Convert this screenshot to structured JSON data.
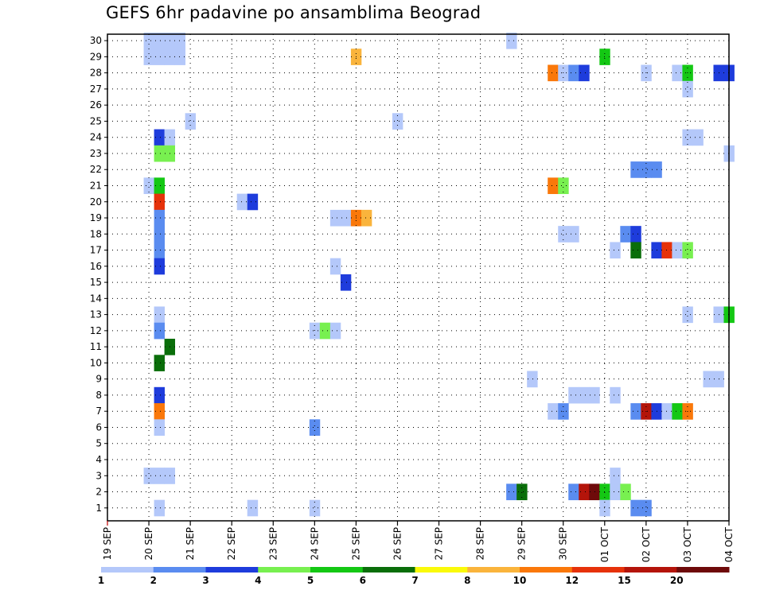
{
  "chart_data": {
    "type": "heatmap",
    "title": "GEFS 6hr padavine po ansamblima Beograd",
    "xlabel": "",
    "ylabel": "",
    "x_ticks": [
      "19 SEP",
      "20 SEP",
      "21 SEP",
      "22 SEP",
      "23 SEP",
      "24 SEP",
      "25 SEP",
      "26 SEP",
      "27 SEP",
      "28 SEP",
      "29 SEP",
      "30 SEP",
      "01 OCT",
      "02 OCT",
      "03 OCT",
      "04 OCT"
    ],
    "y_ticks": [
      "1",
      "2",
      "3",
      "4",
      "5",
      "6",
      "7",
      "8",
      "9",
      "10",
      "11",
      "12",
      "13",
      "14",
      "15",
      "16",
      "17",
      "18",
      "19",
      "20",
      "21",
      "22",
      "23",
      "24",
      "25",
      "26",
      "27",
      "28",
      "29",
      "30"
    ],
    "ylim": [
      0,
      30
    ],
    "grid": true,
    "x_start": "2023-09-19T00:00",
    "step_hours": 6,
    "units": "mm",
    "legend": {
      "position": "bottom",
      "labels": [
        "1",
        "2",
        "3",
        "4",
        "5",
        "6",
        "7",
        "8",
        "10",
        "12",
        "15",
        "20"
      ],
      "colors": [
        "#b4c8fa",
        "#5a8cf0",
        "#1e3cdc",
        "#78f050",
        "#14c814",
        "#0a6e0a",
        "#fafa0a",
        "#fab43c",
        "#fa780a",
        "#e6320a",
        "#b4140a",
        "#6e0a0a"
      ]
    },
    "cells": [
      {
        "y": 30,
        "t": [
          [
            4,
            1
          ],
          [
            5,
            1
          ],
          [
            6,
            1
          ],
          [
            7,
            1
          ],
          [
            39,
            1
          ]
        ]
      },
      {
        "y": 29,
        "t": [
          [
            4,
            1
          ],
          [
            5,
            1
          ],
          [
            6,
            1
          ],
          [
            7,
            1
          ],
          [
            24,
            8
          ],
          [
            48,
            5
          ]
        ]
      },
      {
        "y": 28,
        "t": [
          [
            43,
            10
          ],
          [
            44,
            1
          ],
          [
            45,
            2
          ],
          [
            46,
            3
          ],
          [
            52,
            1
          ],
          [
            55,
            1
          ],
          [
            56,
            5
          ],
          [
            59,
            3
          ],
          [
            60,
            3
          ]
        ]
      },
      {
        "y": 27,
        "t": [
          [
            56,
            1
          ]
        ]
      },
      {
        "y": 25,
        "t": [
          [
            8,
            1
          ],
          [
            28,
            1
          ]
        ]
      },
      {
        "y": 24,
        "t": [
          [
            5,
            3
          ],
          [
            6,
            1
          ],
          [
            56,
            1
          ],
          [
            57,
            1
          ]
        ]
      },
      {
        "y": 23,
        "t": [
          [
            5,
            4
          ],
          [
            6,
            4
          ],
          [
            60,
            1
          ]
        ]
      },
      {
        "y": 22,
        "t": [
          [
            51,
            2
          ],
          [
            52,
            2
          ],
          [
            53,
            2
          ]
        ]
      },
      {
        "y": 21,
        "t": [
          [
            4,
            1
          ],
          [
            5,
            5
          ],
          [
            43,
            10
          ],
          [
            44,
            4
          ]
        ]
      },
      {
        "y": 20,
        "t": [
          [
            5,
            12
          ],
          [
            13,
            1
          ],
          [
            14,
            3
          ]
        ]
      },
      {
        "y": 19,
        "t": [
          [
            5,
            2
          ],
          [
            22,
            1
          ],
          [
            23,
            1
          ],
          [
            24,
            10
          ],
          [
            25,
            8
          ]
        ]
      },
      {
        "y": 18,
        "t": [
          [
            5,
            2
          ],
          [
            44,
            1
          ],
          [
            45,
            1
          ],
          [
            50,
            2
          ],
          [
            51,
            3
          ]
        ]
      },
      {
        "y": 17,
        "t": [
          [
            5,
            2
          ],
          [
            49,
            1
          ],
          [
            51,
            6
          ],
          [
            53,
            3
          ],
          [
            54,
            12
          ],
          [
            55,
            1
          ],
          [
            56,
            4
          ]
        ]
      },
      {
        "y": 16,
        "t": [
          [
            5,
            3
          ],
          [
            22,
            1
          ]
        ]
      },
      {
        "y": 15,
        "t": [
          [
            23,
            3
          ]
        ]
      },
      {
        "y": 13,
        "t": [
          [
            5,
            1
          ],
          [
            56,
            1
          ],
          [
            59,
            1
          ],
          [
            60,
            5
          ]
        ]
      },
      {
        "y": 12,
        "t": [
          [
            5,
            2
          ],
          [
            20,
            1
          ],
          [
            21,
            4
          ],
          [
            22,
            1
          ]
        ]
      },
      {
        "y": 11,
        "t": [
          [
            6,
            6
          ]
        ]
      },
      {
        "y": 10,
        "t": [
          [
            5,
            6
          ]
        ]
      },
      {
        "y": 9,
        "t": [
          [
            41,
            1
          ],
          [
            58,
            1
          ],
          [
            59,
            1
          ]
        ]
      },
      {
        "y": 8,
        "t": [
          [
            5,
            3
          ],
          [
            45,
            1
          ],
          [
            46,
            1
          ],
          [
            47,
            1
          ],
          [
            49,
            1
          ]
        ]
      },
      {
        "y": 7,
        "t": [
          [
            5,
            10
          ],
          [
            43,
            1
          ],
          [
            44,
            2
          ],
          [
            51,
            2
          ],
          [
            52,
            15
          ],
          [
            53,
            3
          ],
          [
            54,
            1
          ],
          [
            55,
            5
          ],
          [
            56,
            10
          ]
        ]
      },
      {
        "y": 6,
        "t": [
          [
            5,
            1
          ],
          [
            20,
            2
          ]
        ]
      },
      {
        "y": 3,
        "t": [
          [
            4,
            1
          ],
          [
            5,
            1
          ],
          [
            6,
            1
          ],
          [
            49,
            1
          ]
        ]
      },
      {
        "y": 2,
        "t": [
          [
            39,
            2
          ],
          [
            40,
            6
          ],
          [
            45,
            2
          ],
          [
            46,
            15
          ],
          [
            47,
            20
          ],
          [
            48,
            5
          ],
          [
            49,
            1
          ],
          [
            50,
            4
          ]
        ]
      },
      {
        "y": 1,
        "t": [
          [
            5,
            1
          ],
          [
            14,
            1
          ],
          [
            20,
            1
          ],
          [
            48,
            1
          ],
          [
            51,
            2
          ],
          [
            52,
            2
          ]
        ]
      }
    ]
  }
}
